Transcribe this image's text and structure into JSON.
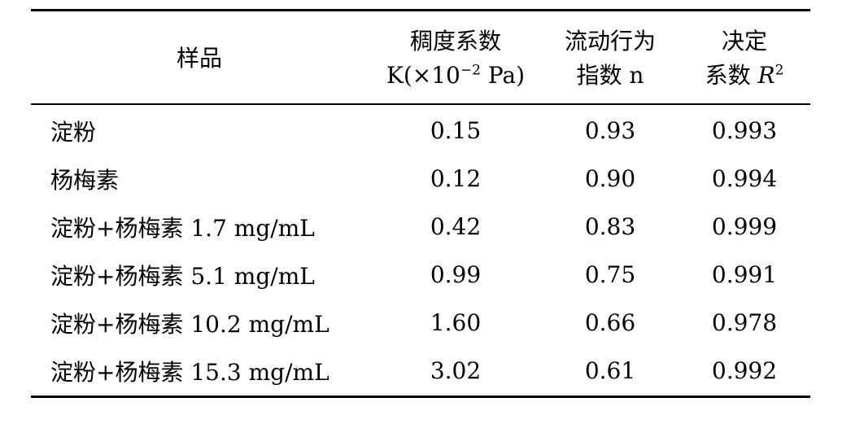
{
  "table": {
    "headers": {
      "sample": "样品",
      "k_line1": "稠度系数",
      "k_line2_prefix": "K(×10",
      "k_line2_exp": "−2",
      "k_line2_suffix": " Pa)",
      "n_line1": "流动行为",
      "n_line2": "指数 n",
      "r2_line1": "决定",
      "r2_line2_prefix": "系数 ",
      "r2_line2_var": "R",
      "r2_line2_exp": "2"
    },
    "rows": [
      {
        "sample": "淀粉",
        "k": "0.15",
        "n": "0.93",
        "r2": "0.993"
      },
      {
        "sample": "杨梅素",
        "k": "0.12",
        "n": "0.90",
        "r2": "0.994"
      },
      {
        "sample": "淀粉+杨梅素 1.7 mg/mL",
        "k": "0.42",
        "n": "0.83",
        "r2": "0.999"
      },
      {
        "sample": "淀粉+杨梅素 5.1 mg/mL",
        "k": "0.99",
        "n": "0.75",
        "r2": "0.991"
      },
      {
        "sample": "淀粉+杨梅素 10.2 mg/mL",
        "k": "1.60",
        "n": "0.66",
        "r2": "0.978"
      },
      {
        "sample": "淀粉+杨梅素 15.3 mg/mL",
        "k": "3.02",
        "n": "0.61",
        "r2": "0.992"
      }
    ]
  }
}
